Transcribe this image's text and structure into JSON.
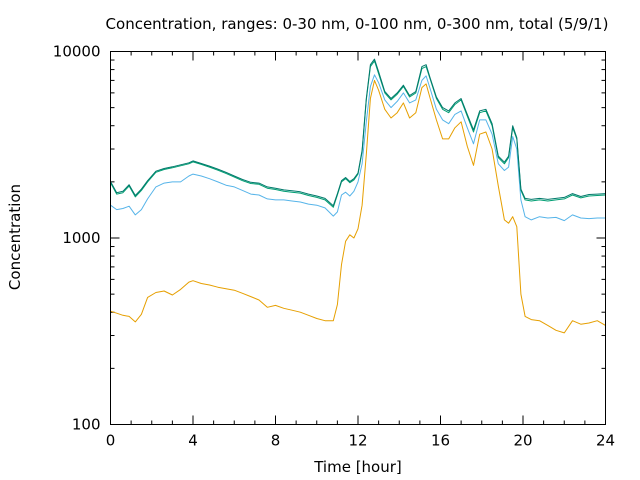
{
  "chart_data": {
    "type": "line",
    "title": "Concentration, ranges: 0-30 nm, 0-100 nm, 0-300 nm, total (5/9/1)",
    "xlabel": "Time [hour]",
    "ylabel": "Concentration",
    "xlim": [
      0,
      24
    ],
    "ylim": [
      100,
      10000
    ],
    "yscale": "log",
    "grid": false,
    "legend": "none",
    "x_ticks": [
      0,
      4,
      8,
      12,
      16,
      20,
      24
    ],
    "x_tick_labels": [
      "0",
      "4",
      "8",
      "12",
      "16",
      "20",
      "24"
    ],
    "y_ticks": [
      100,
      1000,
      10000
    ],
    "y_tick_labels": [
      "100",
      "1000",
      "10000"
    ],
    "x": [
      0,
      0.3,
      0.6,
      0.9,
      1.2,
      1.5,
      1.8,
      2.2,
      2.6,
      3.0,
      3.4,
      3.8,
      4.0,
      4.4,
      4.8,
      5.2,
      5.6,
      6.0,
      6.4,
      6.8,
      7.2,
      7.6,
      8.0,
      8.4,
      8.8,
      9.2,
      9.6,
      10.0,
      10.4,
      10.8,
      11.0,
      11.2,
      11.4,
      11.6,
      11.8,
      12.0,
      12.2,
      12.4,
      12.6,
      12.8,
      13.0,
      13.3,
      13.6,
      13.9,
      14.2,
      14.5,
      14.8,
      15.1,
      15.3,
      15.5,
      15.8,
      16.1,
      16.4,
      16.7,
      17.0,
      17.3,
      17.6,
      17.9,
      18.2,
      18.5,
      18.8,
      19.1,
      19.3,
      19.5,
      19.7,
      19.9,
      20.1,
      20.4,
      20.8,
      21.2,
      21.6,
      22.0,
      22.4,
      22.8,
      23.2,
      23.6,
      24.0
    ],
    "series": [
      {
        "color": "#e69f00",
        "values": [
          405,
          395,
          385,
          380,
          355,
          390,
          480,
          510,
          520,
          495,
          530,
          580,
          590,
          570,
          560,
          545,
          535,
          525,
          505,
          485,
          465,
          425,
          435,
          420,
          410,
          400,
          385,
          370,
          360,
          360,
          440,
          720,
          960,
          1040,
          1000,
          1120,
          1500,
          2800,
          5600,
          7000,
          6200,
          4900,
          4400,
          4700,
          5300,
          4400,
          4700,
          6400,
          6700,
          5600,
          4300,
          3400,
          3400,
          3900,
          4200,
          3100,
          2450,
          3600,
          3700,
          3000,
          1900,
          1250,
          1200,
          1300,
          1150,
          500,
          380,
          365,
          360,
          340,
          320,
          310,
          360,
          345,
          350,
          360,
          340
        ]
      },
      {
        "color": "#56b4e9",
        "values": [
          1500,
          1420,
          1440,
          1480,
          1330,
          1420,
          1620,
          1880,
          1970,
          2000,
          2000,
          2150,
          2200,
          2150,
          2080,
          2000,
          1920,
          1880,
          1800,
          1720,
          1700,
          1620,
          1600,
          1600,
          1580,
          1560,
          1520,
          1500,
          1450,
          1310,
          1380,
          1700,
          1760,
          1680,
          1780,
          2000,
          2500,
          4200,
          6500,
          7500,
          6800,
          5500,
          5000,
          5400,
          6000,
          5300,
          5500,
          7000,
          7400,
          6300,
          4900,
          4300,
          4100,
          4600,
          4800,
          3900,
          3200,
          4300,
          4300,
          3600,
          2500,
          2300,
          2400,
          3500,
          3000,
          1600,
          1300,
          1250,
          1300,
          1280,
          1290,
          1240,
          1330,
          1280,
          1270,
          1280,
          1280
        ]
      },
      {
        "color": "#009e73",
        "values": [
          1980,
          1720,
          1750,
          1900,
          1660,
          1800,
          2000,
          2250,
          2330,
          2380,
          2440,
          2500,
          2560,
          2480,
          2400,
          2310,
          2220,
          2120,
          2030,
          1960,
          1940,
          1850,
          1820,
          1780,
          1760,
          1740,
          1690,
          1650,
          1600,
          1460,
          1700,
          2000,
          2080,
          1980,
          2050,
          2200,
          2900,
          5500,
          8300,
          8900,
          7600,
          6000,
          5500,
          5900,
          6500,
          5700,
          6000,
          8100,
          8300,
          7100,
          5600,
          4900,
          4700,
          5200,
          5500,
          4500,
          3700,
          4700,
          4800,
          4000,
          2700,
          2500,
          2700,
          3900,
          3400,
          1800,
          1600,
          1580,
          1600,
          1580,
          1600,
          1620,
          1700,
          1640,
          1680,
          1690,
          1700
        ]
      },
      {
        "color": "#00796b",
        "values": [
          2010,
          1750,
          1780,
          1930,
          1690,
          1830,
          2030,
          2280,
          2360,
          2410,
          2470,
          2530,
          2590,
          2510,
          2430,
          2340,
          2250,
          2150,
          2060,
          1990,
          1970,
          1880,
          1850,
          1810,
          1790,
          1770,
          1720,
          1680,
          1630,
          1490,
          1730,
          2030,
          2110,
          2010,
          2080,
          2230,
          2950,
          5600,
          8500,
          9100,
          7800,
          6100,
          5600,
          6000,
          6600,
          5800,
          6100,
          8300,
          8500,
          7200,
          5700,
          5000,
          4800,
          5300,
          5600,
          4600,
          3800,
          4800,
          4900,
          4100,
          2750,
          2550,
          2750,
          4000,
          3450,
          1830,
          1630,
          1610,
          1630,
          1610,
          1630,
          1650,
          1730,
          1670,
          1710,
          1720,
          1730
        ]
      }
    ]
  }
}
